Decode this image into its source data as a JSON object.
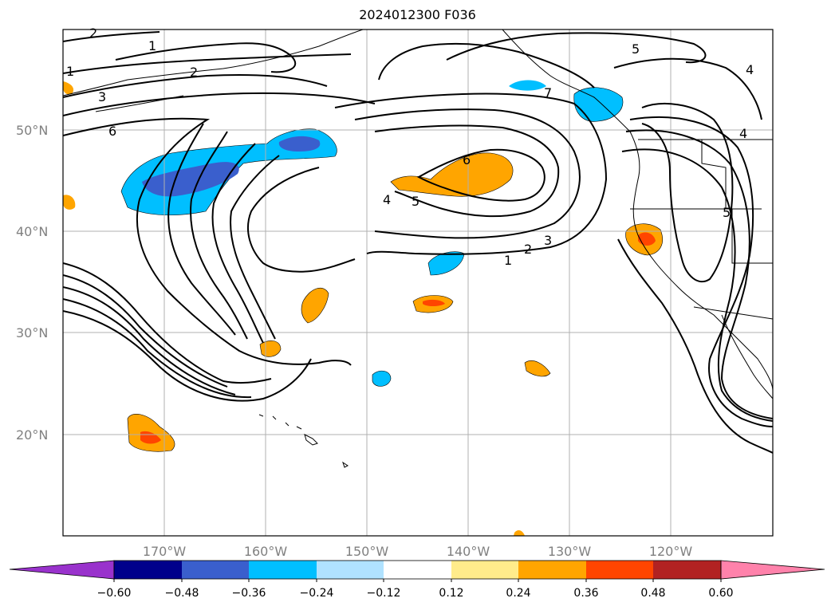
{
  "title": "2024012300 F036",
  "map": {
    "lat_labels": [
      "50°N",
      "40°N",
      "30°N",
      "20°N"
    ],
    "lon_labels": [
      "170°W",
      "160°W",
      "150°W",
      "140°W",
      "130°W",
      "120°W"
    ],
    "contour_labels": [
      "2",
      "1",
      "1",
      "2",
      "3",
      "6",
      "5",
      "4",
      "7",
      "4",
      "5",
      "6",
      "4",
      "5",
      "3",
      "2",
      "1"
    ]
  },
  "colorbar": {
    "ticks": [
      "−0.60",
      "−0.48",
      "−0.36",
      "−0.24",
      "−0.12",
      "0.12",
      "0.24",
      "0.36",
      "0.48",
      "0.60"
    ],
    "colors": [
      "#9932cc",
      "#00008b",
      "#3a5fcd",
      "#00bfff",
      "#b0e2ff",
      "#ffffff",
      "#ffec8b",
      "#ffa500",
      "#ff4500",
      "#b22222",
      "#ff82ab"
    ]
  }
}
